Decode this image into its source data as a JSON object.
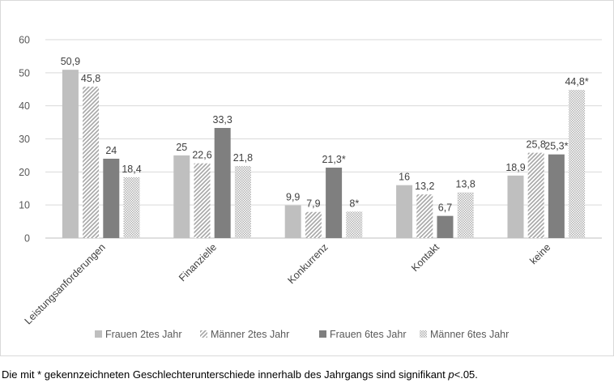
{
  "chart_data": {
    "type": "bar",
    "categories": [
      "Leistungsanforderungen",
      "Finanzielle",
      "Konkurrenz",
      "Kontakt",
      "keine"
    ],
    "series": [
      {
        "name": "Frauen 2tes Jahr",
        "values": [
          50.9,
          25,
          9.9,
          16,
          18.9
        ],
        "labels": [
          "50,9",
          "25",
          "9,9",
          "16",
          "18,9"
        ],
        "color": "#bfbfbf",
        "pattern": "solid"
      },
      {
        "name": "Männer 2tes Jahr",
        "values": [
          45.8,
          22.6,
          7.9,
          13.2,
          25.8
        ],
        "labels": [
          "45,8",
          "22,6",
          "7,9",
          "13,2",
          "25,8"
        ],
        "color": "#bfbfbf",
        "pattern": "diagonal"
      },
      {
        "name": "Frauen 6tes Jahr",
        "values": [
          24,
          33.3,
          21.3,
          6.7,
          25.3
        ],
        "labels": [
          "24",
          "33,3",
          "21,3*",
          "6,7",
          "25,3*"
        ],
        "color": "#7f7f7f",
        "pattern": "solid"
      },
      {
        "name": "Männer 6tes Jahr",
        "values": [
          18.4,
          21.8,
          8,
          13.8,
          44.8
        ],
        "labels": [
          "18,4",
          "21,8",
          "8*",
          "13,8",
          "44,8*"
        ],
        "color": "#bfbfbf",
        "pattern": "dotted"
      }
    ],
    "yticks": [
      "0",
      "10",
      "20",
      "30",
      "40",
      "50",
      "60"
    ],
    "ylim": [
      0,
      60
    ],
    "grid": true,
    "legend": "bottom"
  },
  "footnote": {
    "text": "Die mit * gekennzeichneten Geschlechterunterschiede innerhalb des Jahrgangs sind signifikant ",
    "p_italic": "p",
    "suffix": "<.05."
  }
}
